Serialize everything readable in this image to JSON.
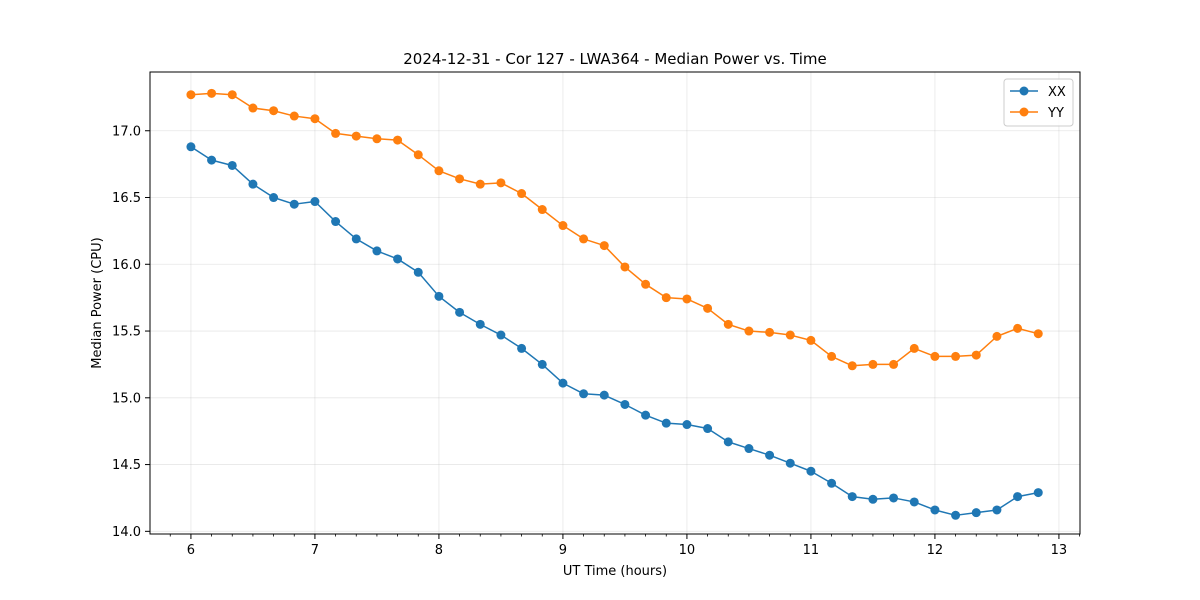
{
  "chart_data": {
    "type": "line",
    "title": "2024-12-31 - Cor 127 - LWA364 - Median Power vs. Time",
    "xlabel": "UT Time (hours)",
    "ylabel": "Median Power (CPU)",
    "xlim": [
      5.67,
      13.17
    ],
    "ylim": [
      13.98,
      17.44
    ],
    "xticks": [
      6,
      7,
      8,
      9,
      10,
      11,
      12,
      13
    ],
    "yticks": [
      14.0,
      14.5,
      15.0,
      15.5,
      16.0,
      16.5,
      17.0
    ],
    "ytick_labels": [
      "14.0",
      "14.5",
      "15.0",
      "15.5",
      "16.0",
      "16.5",
      "17.0"
    ],
    "grid": true,
    "legend_position": "top-right",
    "x": [
      6.0,
      6.1667,
      6.3333,
      6.5,
      6.6667,
      6.8333,
      7.0,
      7.1667,
      7.3333,
      7.5,
      7.6667,
      7.8333,
      8.0,
      8.1667,
      8.3333,
      8.5,
      8.6667,
      8.8333,
      9.0,
      9.1667,
      9.3333,
      9.5,
      9.6667,
      9.8333,
      10.0,
      10.1667,
      10.3333,
      10.5,
      10.6667,
      10.8333,
      11.0,
      11.1667,
      11.3333,
      11.5,
      11.6667,
      11.8333,
      12.0,
      12.1667,
      12.3333,
      12.5,
      12.6667,
      12.8333
    ],
    "series": [
      {
        "name": "XX",
        "color": "#1f77b4",
        "values": [
          16.88,
          16.78,
          16.74,
          16.6,
          16.5,
          16.45,
          16.47,
          16.32,
          16.19,
          16.1,
          16.04,
          15.94,
          15.76,
          15.64,
          15.55,
          15.47,
          15.37,
          15.25,
          15.11,
          15.03,
          15.02,
          14.95,
          14.87,
          14.81,
          14.8,
          14.77,
          14.67,
          14.62,
          14.57,
          14.51,
          14.45,
          14.36,
          14.26,
          14.24,
          14.25,
          14.22,
          14.16,
          14.12,
          14.14,
          14.16,
          14.26,
          14.29
        ]
      },
      {
        "name": "YY",
        "color": "#ff7f0e",
        "values": [
          17.27,
          17.28,
          17.27,
          17.17,
          17.15,
          17.11,
          17.09,
          16.98,
          16.96,
          16.94,
          16.93,
          16.82,
          16.7,
          16.64,
          16.6,
          16.61,
          16.53,
          16.41,
          16.29,
          16.19,
          16.14,
          15.98,
          15.85,
          15.75,
          15.74,
          15.67,
          15.55,
          15.5,
          15.49,
          15.47,
          15.43,
          15.31,
          15.24,
          15.25,
          15.25,
          15.37,
          15.31,
          15.31,
          15.32,
          15.46,
          15.52,
          15.48
        ]
      }
    ]
  }
}
